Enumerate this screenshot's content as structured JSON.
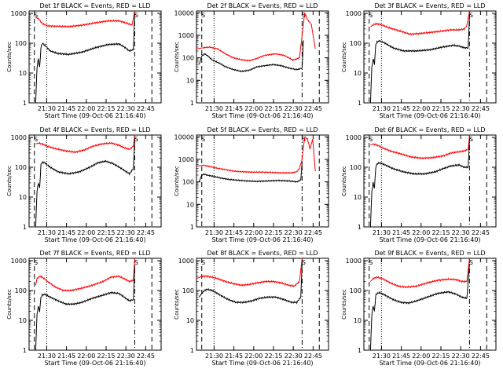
{
  "chart_data": [
    {
      "type": "line",
      "title": "Det 1f BLACK = Events, RED = LLD",
      "xlabel": "Start Time (09-Oct-06 21:16:40)",
      "ylabel": "Counts/sec",
      "x_ticks": [
        "21:30",
        "21:45",
        "22:00",
        "22:15",
        "22:30",
        "22:45"
      ],
      "x_tick_minutes": [
        13.33,
        28.33,
        43.33,
        58.33,
        73.33,
        88.33
      ],
      "y_ticks": [
        "1",
        "10",
        "100",
        "1000"
      ],
      "yscale": "log",
      "xlim": [
        0,
        100
      ],
      "ylim": [
        1,
        1200
      ],
      "markers": [
        "S",
        "S"
      ],
      "series": [
        {
          "color": "#ff0000",
          "x": [
            5,
            6,
            8,
            10,
            14,
            20,
            30,
            40,
            50,
            60,
            68,
            74,
            78,
            80
          ],
          "values": [
            700,
            720,
            600,
            450,
            380,
            370,
            360,
            400,
            480,
            560,
            560,
            470,
            400,
            1200
          ]
        },
        {
          "color": "#000000",
          "x": [
            5,
            6,
            7,
            8,
            9,
            10,
            12,
            16,
            22,
            30,
            40,
            50,
            60,
            68,
            72,
            76,
            79,
            80
          ],
          "values": [
            1,
            15,
            30,
            15,
            70,
            100,
            85,
            55,
            45,
            42,
            50,
            70,
            90,
            95,
            75,
            55,
            60,
            1000
          ]
        }
      ]
    },
    {
      "type": "line",
      "title": "Det 2f BLACK = Events, RED = LLD",
      "xlabel": "Start Time (09-Oct-06 21:16:40)",
      "ylabel": "Counts/sec",
      "x_ticks": [
        "21:30",
        "21:45",
        "22:00",
        "22:15",
        "22:30",
        "22:45"
      ],
      "x_tick_minutes": [
        13.33,
        28.33,
        43.33,
        58.33,
        73.33,
        88.33
      ],
      "y_ticks": [
        "1",
        "10",
        "100",
        "1000",
        "10000"
      ],
      "yscale": "log",
      "xlim": [
        0,
        100
      ],
      "ylim": [
        1,
        12000
      ],
      "markers": [
        "S",
        "S"
      ],
      "series": [
        {
          "color": "#ff0000",
          "x": [
            0,
            5,
            10,
            16,
            22,
            28,
            35,
            40,
            45,
            52,
            60,
            66,
            70,
            73,
            75,
            78,
            80,
            82,
            84,
            87,
            90
          ],
          "values": [
            250,
            280,
            300,
            250,
            150,
            100,
            80,
            75,
            90,
            130,
            150,
            130,
            100,
            80,
            85,
            100,
            1000,
            10000,
            5000,
            3000,
            250
          ]
        },
        {
          "color": "#000000",
          "x": [
            2,
            4,
            6,
            8,
            12,
            18,
            22,
            28,
            34,
            40,
            46,
            52,
            58,
            64,
            70,
            76,
            80,
            81
          ],
          "values": [
            50,
            120,
            150,
            130,
            80,
            55,
            40,
            30,
            25,
            28,
            40,
            45,
            50,
            45,
            35,
            30,
            35,
            600
          ]
        }
      ]
    },
    {
      "type": "line",
      "title": "Det 3f BLACK = Events, RED = LLD",
      "xlabel": "Start Time (09-Oct-06 21:16:40)",
      "ylabel": "Counts/sec",
      "x_ticks": [
        "21:30",
        "21:45",
        "22:00",
        "22:15",
        "22:30",
        "22:45"
      ],
      "x_tick_minutes": [
        13.33,
        28.33,
        43.33,
        58.33,
        73.33,
        88.33
      ],
      "y_ticks": [
        "1",
        "10",
        "100",
        "1000"
      ],
      "yscale": "log",
      "xlim": [
        0,
        100
      ],
      "ylim": [
        1,
        1200
      ],
      "markers": [
        "S",
        "S"
      ],
      "series": [
        {
          "color": "#ff0000",
          "x": [
            5,
            7,
            10,
            14,
            20,
            28,
            35,
            42,
            50,
            58,
            66,
            72,
            76,
            78,
            80
          ],
          "values": [
            350,
            420,
            450,
            400,
            320,
            250,
            200,
            210,
            230,
            250,
            280,
            280,
            300,
            400,
            1200
          ]
        },
        {
          "color": "#000000",
          "x": [
            5,
            6,
            7,
            8,
            9,
            10,
            12,
            16,
            22,
            30,
            40,
            50,
            60,
            68,
            72,
            76,
            79,
            80
          ],
          "values": [
            1,
            15,
            30,
            20,
            90,
            110,
            120,
            100,
            70,
            55,
            55,
            60,
            75,
            85,
            80,
            70,
            70,
            900
          ]
        }
      ]
    },
    {
      "type": "line",
      "title": "Det 4f BLACK = Events, RED = LLD",
      "xlabel": "Start Time (09-Oct-06 21:16:40)",
      "ylabel": "Counts/sec",
      "x_ticks": [
        "21:30",
        "21:45",
        "22:00",
        "22:15",
        "22:30",
        "22:45"
      ],
      "x_tick_minutes": [
        13.33,
        28.33,
        43.33,
        58.33,
        73.33,
        88.33
      ],
      "y_ticks": [
        "1",
        "10",
        "100",
        "1000"
      ],
      "yscale": "log",
      "xlim": [
        0,
        100
      ],
      "ylim": [
        1,
        1200
      ],
      "markers": [
        "S",
        "S"
      ],
      "series": [
        {
          "color": "#ff0000",
          "x": [
            5,
            7,
            10,
            14,
            20,
            28,
            35,
            42,
            48,
            55,
            62,
            68,
            72,
            76,
            79,
            80
          ],
          "values": [
            600,
            650,
            600,
            500,
            420,
            350,
            320,
            380,
            500,
            600,
            650,
            550,
            450,
            400,
            500,
            1200
          ]
        },
        {
          "color": "#000000",
          "x": [
            5,
            6,
            7,
            8,
            9,
            10,
            12,
            16,
            22,
            30,
            38,
            46,
            52,
            58,
            64,
            70,
            76,
            79,
            80
          ],
          "values": [
            1,
            15,
            30,
            20,
            120,
            150,
            140,
            100,
            70,
            60,
            70,
            100,
            140,
            160,
            130,
            90,
            60,
            90,
            900
          ]
        }
      ]
    },
    {
      "type": "line",
      "title": "Det 5f BLACK = Events, RED = LLD",
      "xlabel": "Start Time (09-Oct-06 21:16:40)",
      "ylabel": "Counts/sec",
      "x_ticks": [
        "21:30",
        "21:45",
        "22:00",
        "22:15",
        "22:30",
        "22:45"
      ],
      "x_tick_minutes": [
        13.33,
        28.33,
        43.33,
        58.33,
        73.33,
        88.33
      ],
      "y_ticks": [
        "1",
        "10",
        "100",
        "1000",
        "10000"
      ],
      "yscale": "log",
      "xlim": [
        0,
        100
      ],
      "ylim": [
        1,
        12000
      ],
      "markers": [
        "S",
        "S"
      ],
      "series": [
        {
          "color": "#ff0000",
          "x": [
            0,
            5,
            10,
            16,
            22,
            28,
            35,
            42,
            50,
            58,
            66,
            72,
            76,
            78,
            80,
            82,
            84,
            86,
            88,
            90
          ],
          "values": [
            500,
            550,
            480,
            400,
            350,
            300,
            280,
            270,
            270,
            260,
            250,
            250,
            280,
            400,
            1000,
            10000,
            8000,
            3000,
            8000,
            300
          ]
        },
        {
          "color": "#000000",
          "x": [
            2,
            4,
            6,
            8,
            12,
            18,
            24,
            30,
            38,
            46,
            54,
            62,
            70,
            76,
            79,
            80
          ],
          "values": [
            100,
            200,
            220,
            200,
            180,
            150,
            130,
            120,
            110,
            105,
            110,
            115,
            110,
            100,
            120,
            800
          ]
        }
      ]
    },
    {
      "type": "line",
      "title": "Det 6f BLACK = Events, RED = LLD",
      "xlabel": "Start Time (09-Oct-06 21:16:40)",
      "ylabel": "Counts/sec",
      "x_ticks": [
        "21:30",
        "21:45",
        "22:00",
        "22:15",
        "22:30",
        "22:45"
      ],
      "x_tick_minutes": [
        13.33,
        28.33,
        43.33,
        58.33,
        73.33,
        88.33
      ],
      "y_ticks": [
        "1",
        "10",
        "100",
        "1000"
      ],
      "yscale": "log",
      "xlim": [
        0,
        100
      ],
      "ylim": [
        1,
        1200
      ],
      "markers": [
        "S",
        "S"
      ],
      "series": [
        {
          "color": "#ff0000",
          "x": [
            5,
            7,
            10,
            14,
            20,
            28,
            36,
            44,
            52,
            60,
            66,
            72,
            76,
            79,
            80
          ],
          "values": [
            550,
            600,
            550,
            450,
            350,
            280,
            220,
            200,
            210,
            240,
            300,
            330,
            350,
            400,
            1200
          ]
        },
        {
          "color": "#000000",
          "x": [
            5,
            6,
            7,
            8,
            9,
            10,
            12,
            16,
            22,
            30,
            38,
            46,
            54,
            60,
            66,
            72,
            76,
            79,
            80
          ],
          "values": [
            1,
            15,
            30,
            20,
            100,
            130,
            140,
            120,
            90,
            70,
            60,
            60,
            70,
            90,
            110,
            120,
            100,
            100,
            900
          ]
        }
      ]
    },
    {
      "type": "line",
      "title": "Det 7f BLACK = Events, RED = LLD",
      "xlabel": "Start Time (09-Oct-06 21:16:40)",
      "ylabel": "Counts/sec",
      "x_ticks": [
        "21:30",
        "21:45",
        "22:00",
        "22:15",
        "22:30",
        "22:45"
      ],
      "x_tick_minutes": [
        13.33,
        28.33,
        43.33,
        58.33,
        73.33,
        88.33
      ],
      "y_ticks": [
        "1",
        "10",
        "100",
        "1000"
      ],
      "yscale": "log",
      "xlim": [
        0,
        100
      ],
      "ylim": [
        1,
        1200
      ],
      "markers": [
        "S",
        "S"
      ],
      "series": [
        {
          "color": "#ff0000",
          "x": [
            5,
            6,
            8,
            10,
            14,
            20,
            26,
            32,
            40,
            48,
            56,
            62,
            68,
            72,
            76,
            79,
            80
          ],
          "values": [
            150,
            250,
            300,
            280,
            200,
            130,
            100,
            100,
            120,
            150,
            200,
            280,
            300,
            250,
            200,
            220,
            1200
          ]
        },
        {
          "color": "#000000",
          "x": [
            5,
            6,
            7,
            8,
            9,
            10,
            12,
            16,
            22,
            28,
            34,
            40,
            48,
            56,
            62,
            68,
            72,
            76,
            79,
            80
          ],
          "values": [
            1,
            15,
            30,
            20,
            60,
            70,
            75,
            60,
            45,
            35,
            35,
            40,
            55,
            70,
            85,
            80,
            60,
            45,
            50,
            700
          ]
        }
      ]
    },
    {
      "type": "line",
      "title": "Det 8f BLACK = Events, RED = LLD",
      "xlabel": "Start Time (09-Oct-06 21:16:40)",
      "ylabel": "Counts/sec",
      "x_ticks": [
        "21:30",
        "21:45",
        "22:00",
        "22:15",
        "22:30",
        "22:45"
      ],
      "x_tick_minutes": [
        13.33,
        28.33,
        43.33,
        58.33,
        73.33,
        88.33
      ],
      "y_ticks": [
        "1",
        "10",
        "100",
        "1000"
      ],
      "yscale": "log",
      "xlim": [
        0,
        100
      ],
      "ylim": [
        1,
        1200
      ],
      "markers": [
        "S",
        "S"
      ],
      "series": [
        {
          "color": "#ff0000",
          "x": [
            0,
            4,
            8,
            12,
            16,
            22,
            28,
            34,
            40,
            46,
            52,
            58,
            64,
            70,
            74,
            78,
            80
          ],
          "values": [
            250,
            300,
            300,
            280,
            250,
            200,
            170,
            150,
            160,
            180,
            200,
            200,
            180,
            150,
            140,
            200,
            1200
          ]
        },
        {
          "color": "#000000",
          "x": [
            2,
            4,
            6,
            8,
            12,
            18,
            24,
            30,
            36,
            42,
            48,
            54,
            60,
            66,
            72,
            76,
            79,
            80
          ],
          "values": [
            60,
            80,
            100,
            110,
            100,
            70,
            50,
            40,
            40,
            45,
            55,
            60,
            60,
            50,
            40,
            40,
            60,
            900
          ]
        }
      ]
    },
    {
      "type": "line",
      "title": "Det 9f BLACK = Events, RED = LLD",
      "xlabel": "Start Time (09-Oct-06 21:16:40)",
      "ylabel": "Counts/sec",
      "x_ticks": [
        "21:30",
        "21:45",
        "22:00",
        "22:15",
        "22:30",
        "22:45"
      ],
      "x_tick_minutes": [
        13.33,
        28.33,
        43.33,
        58.33,
        73.33,
        88.33
      ],
      "y_ticks": [
        "1",
        "10",
        "100",
        "1000"
      ],
      "yscale": "log",
      "xlim": [
        0,
        100
      ],
      "ylim": [
        1,
        1200
      ],
      "markers": [
        "S",
        "S"
      ],
      "series": [
        {
          "color": "#ff0000",
          "x": [
            5,
            7,
            10,
            14,
            20,
            26,
            32,
            40,
            48,
            56,
            64,
            70,
            74,
            78,
            80
          ],
          "values": [
            200,
            250,
            280,
            250,
            180,
            140,
            130,
            140,
            180,
            220,
            240,
            230,
            200,
            200,
            1200
          ]
        },
        {
          "color": "#000000",
          "x": [
            5,
            6,
            7,
            8,
            9,
            10,
            12,
            16,
            22,
            28,
            34,
            40,
            48,
            56,
            64,
            70,
            74,
            78,
            80
          ],
          "values": [
            1,
            15,
            30,
            20,
            70,
            80,
            85,
            70,
            50,
            40,
            38,
            45,
            60,
            80,
            90,
            75,
            60,
            55,
            800
          ]
        }
      ]
    }
  ]
}
